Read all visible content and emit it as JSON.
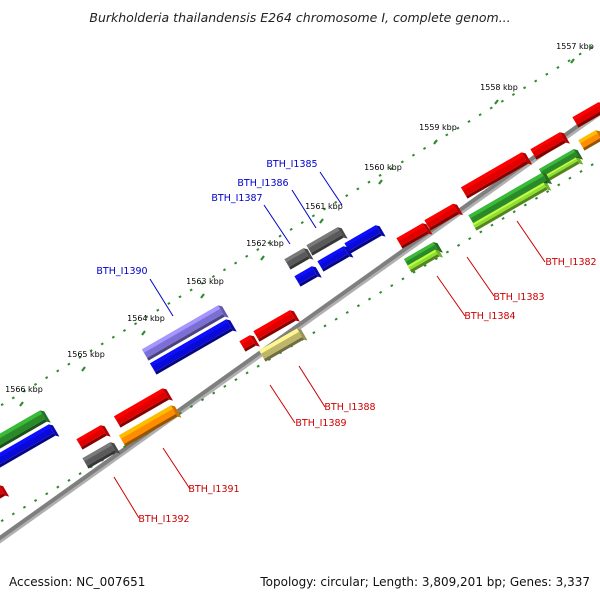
{
  "title": "Burkholderia thailandensis E264 chromosome I, complete genom...",
  "footer": {
    "accession": "Accession: NC_007651",
    "summary": "Topology: circular; Length: 3,809,201 bp; Genes: 3,337"
  },
  "ticks": [
    {
      "label": "1557 kbp"
    },
    {
      "label": "1558 kbp"
    },
    {
      "label": "1559 kbp"
    },
    {
      "label": "1560 kbp"
    },
    {
      "label": "1561 kbp"
    },
    {
      "label": "1562 kbp"
    },
    {
      "label": "1563 kbp"
    },
    {
      "label": "1564 kbp"
    },
    {
      "label": "1565 kbp"
    },
    {
      "label": "1566 kbp"
    }
  ],
  "genes": {
    "BTH_I1382": {
      "label": "BTH_I1382"
    },
    "BTH_I1383": {
      "label": "BTH_I1383"
    },
    "BTH_I1384": {
      "label": "BTH_I1384"
    },
    "BTH_I1385": {
      "label": "BTH_I1385"
    },
    "BTH_I1386": {
      "label": "BTH_I1386"
    },
    "BTH_I1387": {
      "label": "BTH_I1387"
    },
    "BTH_I1388": {
      "label": "BTH_I1388"
    },
    "BTH_I1389": {
      "label": "BTH_I1389"
    },
    "BTH_I1390": {
      "label": "BTH_I1390"
    },
    "BTH_I1391": {
      "label": "BTH_I1391"
    },
    "BTH_I1392": {
      "label": "BTH_I1392"
    }
  },
  "colors": {
    "backbone": "#7f7f7f",
    "dot_ring": "#2e8b2e",
    "label_top": "#0000cc",
    "label_bottom": "#cc0000",
    "red": "#e00000",
    "blue": "#0a0ad8",
    "grey": "#5a5a5a",
    "green": "#2a8a2a",
    "lime": "#8ee030",
    "orange": "#ff8c00",
    "khaki": "#bdb66a",
    "purple": "#7b6fd6"
  }
}
